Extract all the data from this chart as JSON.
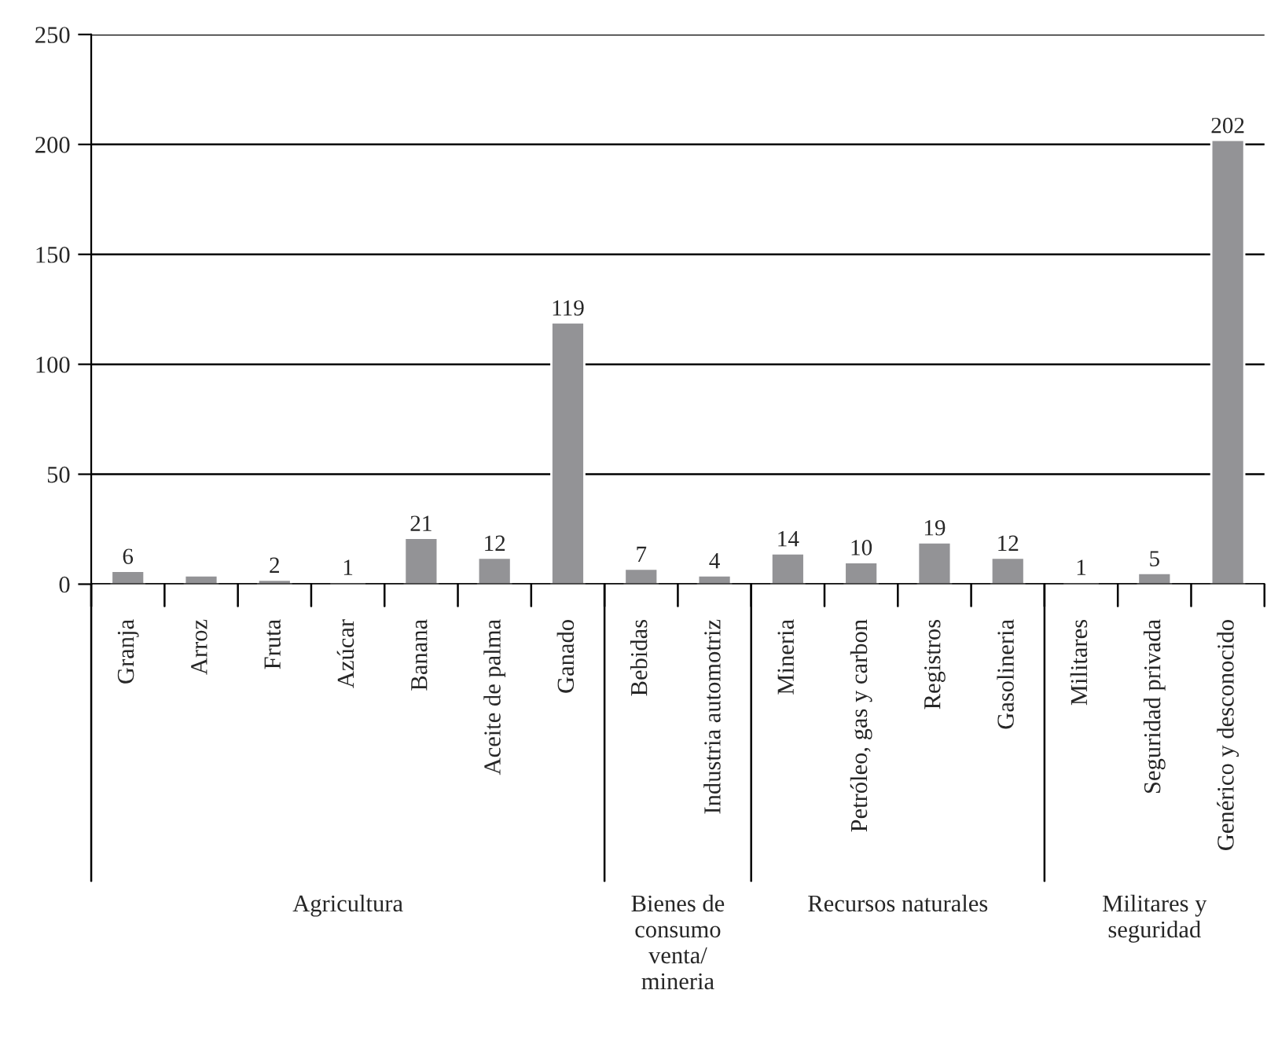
{
  "chart_data": {
    "type": "bar",
    "categories": [
      "Granja",
      "Arroz",
      "Fruta",
      "Azúcar",
      "Banana",
      "Aceite de palma",
      "Ganado",
      "Bebidas",
      "Industria automotriz",
      "Mineria",
      "Petróleo, gas y carbon",
      "Registros",
      "Gasolineria",
      "Militares",
      "Seguridad privada",
      "Genérico y desconocido"
    ],
    "values": [
      6,
      4,
      2,
      1,
      21,
      12,
      119,
      7,
      4,
      14,
      10,
      19,
      12,
      1,
      5,
      202
    ],
    "value_labels": [
      "6",
      null,
      "2",
      "1",
      "21",
      "12",
      "119",
      "7",
      "4",
      "14",
      "10",
      "19",
      "12",
      "1",
      "5",
      "202"
    ],
    "color": "#939396",
    "ylim": [
      0,
      250
    ],
    "yticks": [
      0,
      50,
      100,
      150,
      200,
      250
    ],
    "grid": "y",
    "annotations": [
      "Agricultura",
      "Bienes de\nconsumo\nventa/\nmineria",
      "Recursos naturales",
      "Militares y\nseguridad"
    ]
  }
}
